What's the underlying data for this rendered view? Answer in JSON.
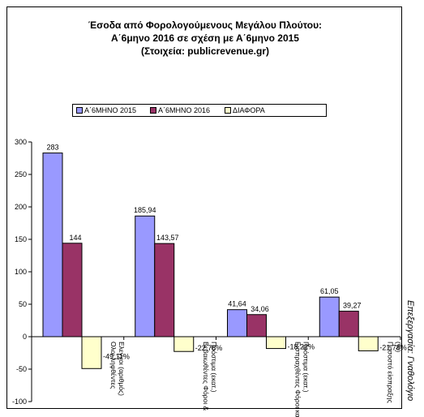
{
  "chart_data": {
    "type": "bar",
    "title": [
      "Έσοδα από Φορολογούμενους Μεγάλου Πλούτου:",
      "Α΄6μηνο 2016 σε σχέση με Α΄6μηνο 2015",
      "(Στοιχεία: publicrevenue.gr)"
    ],
    "categories": [
      "Ολοι ληφθέντες Ελεγχοι (αριθμός)",
      "Βεβαιωθέντες Φόροι & Πρόστιμα (εκατ.)",
      "Εισπραχθέντες Φόροι και Πρόστιμα (εκατ.)",
      "Ποσοστό είσπραξης (%)"
    ],
    "series": [
      {
        "name": "Α΄6ΜΗΝΟ 2015",
        "color": "#9999ff",
        "values": [
          283,
          185.94,
          41.64,
          61.05
        ],
        "labels": [
          "283",
          "185,94",
          "41,64",
          "61,05"
        ]
      },
      {
        "name": "Α΄6ΜΗΝΟ 2016",
        "color": "#993366",
        "values": [
          144,
          143.57,
          34.06,
          39.27
        ],
        "labels": [
          "144",
          "143,57",
          "34,06",
          "39,27"
        ]
      },
      {
        "name": "ΔΙΑΦΟΡΑ",
        "color": "#ffffcc",
        "values": [
          -49.11,
          -22.78,
          -18.22,
          -21.78
        ],
        "labels": [
          "-49,11%",
          "-22,78%",
          "-18,22%",
          "-21,78%"
        ]
      }
    ],
    "ylim": [
      -100,
      300
    ],
    "yticks": [
      -100,
      -50,
      0,
      50,
      100,
      150,
      200,
      250,
      300
    ],
    "grid": false,
    "legend": "top"
  },
  "credit": "Επεξεργασία: Γναθολόγιο"
}
